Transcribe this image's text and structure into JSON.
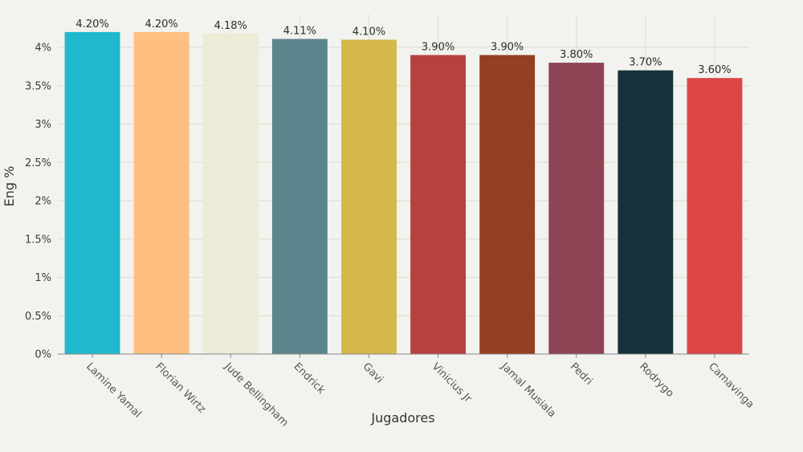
{
  "chart_data": {
    "type": "bar",
    "title": "",
    "xlabel": "Jugadores",
    "ylabel": "Eng %",
    "ylim": [
      0,
      4.3
    ],
    "y_ticks": [
      "0%",
      "0.5%",
      "1%",
      "1.5%",
      "2%",
      "2.5%",
      "3%",
      "3.5%",
      "4%"
    ],
    "y_tick_values": [
      0,
      0.5,
      1,
      1.5,
      2,
      2.5,
      3,
      3.5,
      4
    ],
    "grid": true,
    "categories": [
      "Lamine Yamal",
      "Florian Wirtz",
      "Jude Bellingham",
      "Endrick",
      "Gavi",
      "Vinicius Jr",
      "Jamal Musiala",
      "Pedri",
      "Rodrygo",
      "Camavinga"
    ],
    "values": [
      4.2,
      4.2,
      4.18,
      4.11,
      4.1,
      3.9,
      3.9,
      3.8,
      3.7,
      3.6
    ],
    "value_labels": [
      "4.20%",
      "4.20%",
      "4.18%",
      "4.11%",
      "4.10%",
      "3.90%",
      "3.90%",
      "3.80%",
      "3.70%",
      "3.60%"
    ],
    "colors": [
      "#20b8cc",
      "#ffbf80",
      "#ebebd7",
      "#5b858c",
      "#d4b84a",
      "#b8403e",
      "#923f22",
      "#8e4455",
      "#15313a",
      "#dc4545"
    ]
  }
}
